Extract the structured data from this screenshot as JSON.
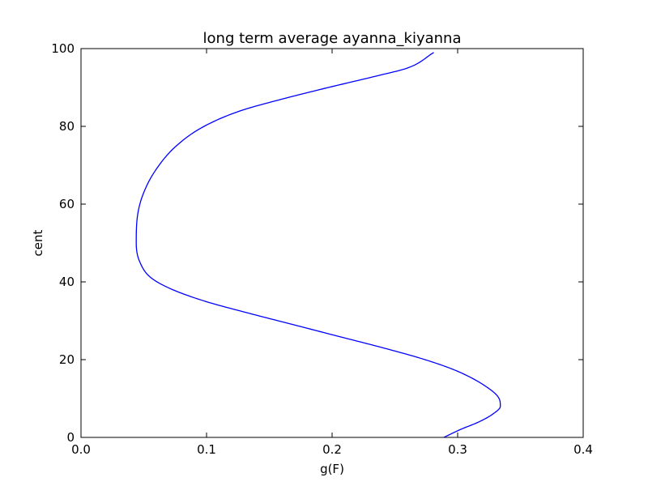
{
  "chart_data": {
    "type": "line",
    "title": "long term average ayanna_kiyanna",
    "xlabel": "g(F)",
    "ylabel": "cent",
    "xlim": [
      0.0,
      0.4
    ],
    "ylim": [
      0,
      100
    ],
    "xticks": [
      0.0,
      0.1,
      0.2,
      0.3,
      0.4
    ],
    "xtick_labels": [
      "0.0",
      "0.1",
      "0.2",
      "0.3",
      "0.4"
    ],
    "yticks": [
      0,
      20,
      40,
      60,
      80,
      100
    ],
    "ytick_labels": [
      "0",
      "20",
      "40",
      "60",
      "80",
      "100"
    ],
    "grid": false,
    "legend": false,
    "line_color": "#0000ff",
    "series": [
      {
        "x": [
          0.289,
          0.302,
          0.317,
          0.328,
          0.334,
          0.333,
          0.323,
          0.3,
          0.274,
          0.241,
          0.205,
          0.169,
          0.133,
          0.099,
          0.073,
          0.056,
          0.047,
          0.044,
          0.045,
          0.05,
          0.06,
          0.076,
          0.098,
          0.127,
          0.16,
          0.197,
          0.236,
          0.26,
          0.281
        ],
        "y": [
          0,
          2,
          4,
          6,
          8,
          10,
          13,
          17,
          20,
          23,
          26,
          29,
          32,
          35,
          38,
          41,
          45,
          50,
          57,
          63,
          69,
          75,
          80,
          84,
          87,
          90,
          93,
          95,
          99
        ]
      }
    ]
  }
}
